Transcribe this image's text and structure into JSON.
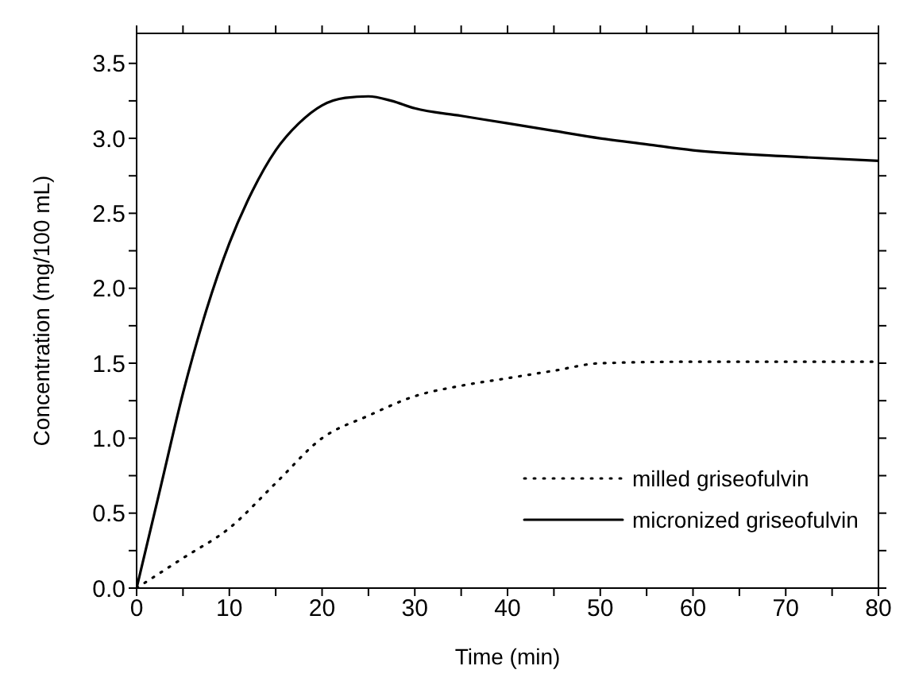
{
  "chart_data": {
    "type": "line",
    "xlabel": "Time (min)",
    "ylabel": "Concentration (mg/100 mL)",
    "xlim": [
      0,
      80
    ],
    "ylim": [
      0,
      3.7
    ],
    "xticks": [
      0,
      {
        "value": 5,
        "label": null
      },
      10,
      {
        "value": 15,
        "label": null
      },
      20,
      {
        "value": 25,
        "label": null
      },
      30,
      {
        "value": 35,
        "label": null
      },
      40,
      {
        "value": 45,
        "label": null
      },
      50,
      {
        "value": 55,
        "label": null
      },
      60,
      {
        "value": 65,
        "label": null
      },
      70,
      {
        "value": 75,
        "label": null
      },
      80
    ],
    "yticks": [
      {
        "value": 0,
        "label": "0.0"
      },
      {
        "value": 0.25,
        "label": null
      },
      {
        "value": 0.5,
        "label": "0.5"
      },
      {
        "value": 0.75,
        "label": null
      },
      {
        "value": 1,
        "label": "1.0"
      },
      {
        "value": 1.25,
        "label": null
      },
      {
        "value": 1.5,
        "label": "1.5"
      },
      {
        "value": 1.75,
        "label": null
      },
      {
        "value": 2,
        "label": "2.0"
      },
      {
        "value": 2.25,
        "label": null
      },
      {
        "value": 2.5,
        "label": "2.5"
      },
      {
        "value": 2.75,
        "label": null
      },
      {
        "value": 3,
        "label": "3.0"
      },
      {
        "value": 3.25,
        "label": null
      },
      {
        "value": 3.5,
        "label": "3.5"
      }
    ],
    "grid": false,
    "legend": "bottom right",
    "marker": "none",
    "series": [
      {
        "name": "milled griseofulvin",
        "color": "#000000",
        "line_style": "dotted",
        "x": [
          0,
          5,
          10,
          15,
          20,
          25,
          30,
          35,
          40,
          45,
          50,
          60,
          70,
          80
        ],
        "values": [
          0,
          0.2,
          0.4,
          0.7,
          1.0,
          1.15,
          1.28,
          1.35,
          1.4,
          1.45,
          1.5,
          1.51,
          1.51,
          1.51
        ]
      },
      {
        "name": "micronized griseofulvin",
        "color": "#000000",
        "line_style": "solid",
        "x": [
          0,
          2.5,
          5,
          7.5,
          10,
          12.5,
          15,
          17.5,
          20,
          22.5,
          25,
          27.5,
          30,
          35,
          40,
          45,
          50,
          55,
          60,
          70,
          80
        ],
        "values": [
          0,
          0.65,
          1.3,
          1.85,
          2.3,
          2.65,
          2.92,
          3.1,
          3.22,
          3.27,
          3.28,
          3.25,
          3.2,
          3.15,
          3.1,
          3.05,
          3.0,
          2.96,
          2.92,
          2.88,
          2.85
        ]
      }
    ]
  }
}
